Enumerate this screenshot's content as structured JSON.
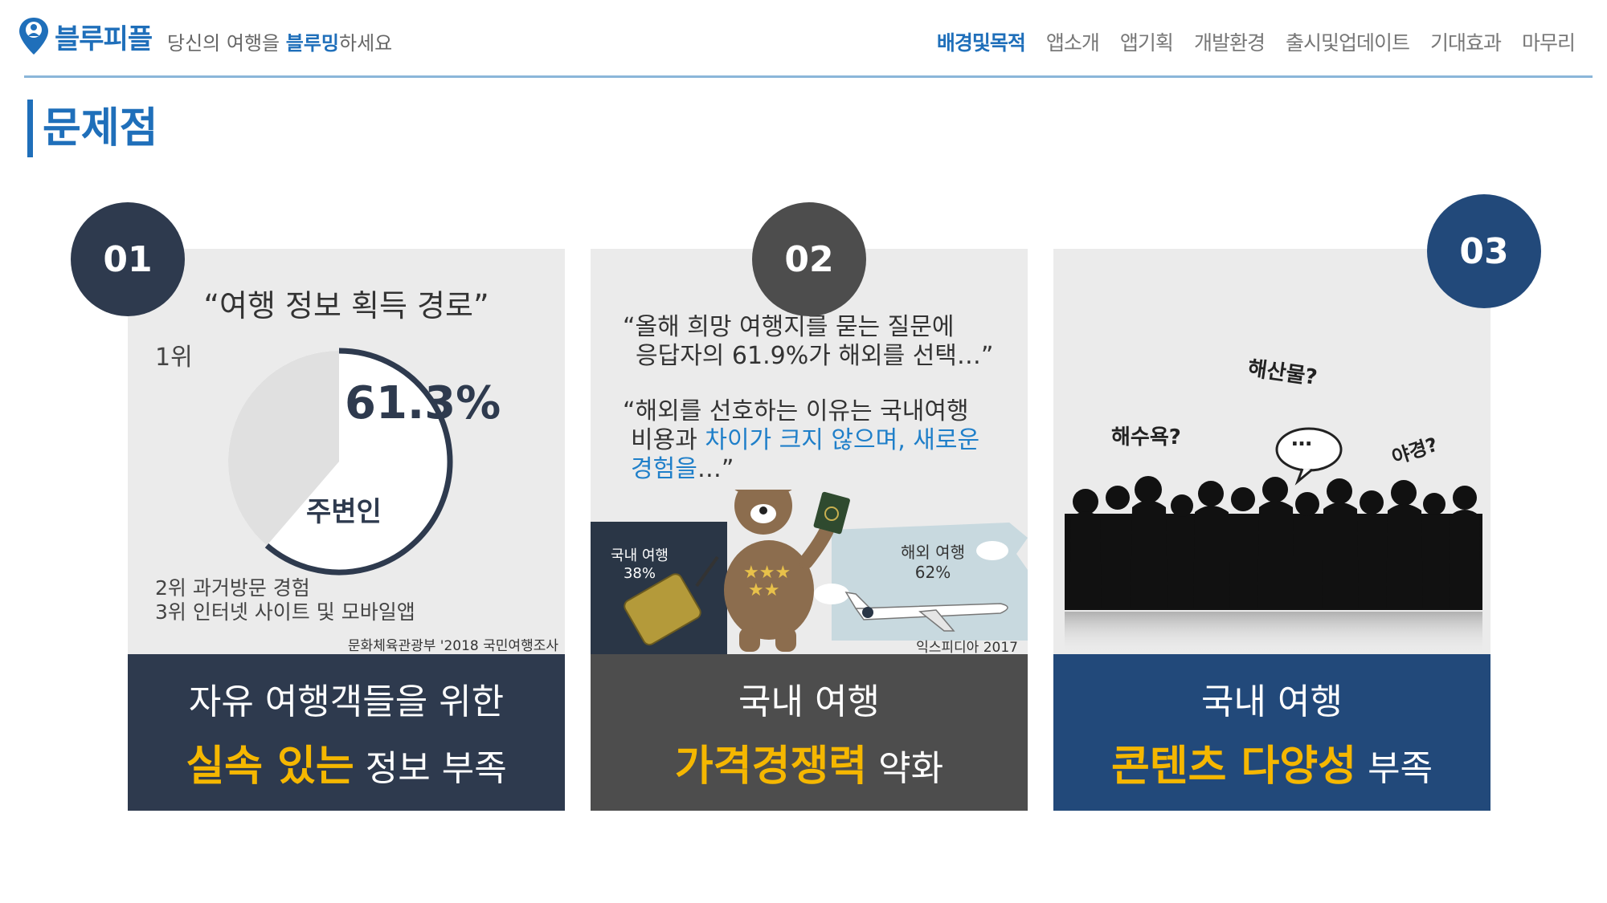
{
  "header": {
    "logo_text": "블루피플",
    "tagline_pre": "당신의 여행을 ",
    "tagline_hl": "블루밍",
    "tagline_post": "하세요",
    "nav": [
      {
        "label": "배경및목적",
        "active": true
      },
      {
        "label": "앱소개",
        "active": false
      },
      {
        "label": "앱기획",
        "active": false
      },
      {
        "label": "개발환경",
        "active": false
      },
      {
        "label": "출시및업데이트",
        "active": false
      },
      {
        "label": "기대효과",
        "active": false
      },
      {
        "label": "마무리",
        "active": false
      }
    ]
  },
  "section_title": "문제점",
  "cards": [
    {
      "number": "01",
      "title": "“여행 정보 획득 경로”",
      "rank1": "1위",
      "percent": "61.3%",
      "percent_value": 0.613,
      "label": "주변인",
      "rank2": "2위 과거방문 경험",
      "rank3": "3위 인터넷 사이트 및 모바일앱",
      "source": "문화체육관광부 '2018 국민여행조사",
      "foot_line1": "자유 여행객들을 위한",
      "foot_emph": "실속 있는",
      "foot_rest": " 정보 부족"
    },
    {
      "number": "02",
      "quote1_line1": "“올해 희망 여행지를 묻는 질문에",
      "quote1_line2": "응답자의 61.9%가 해외를 선택…”",
      "quote2_line1": "“해외를 선호하는 이유는 국내여행",
      "quote2_line2_pre": "비용과 ",
      "quote2_line2_blue": "차이가 크지 않으며, 새로운",
      "quote2_line3_blue": "경험을",
      "quote2_line3_post": "…”",
      "domestic_label": "국내 여행",
      "domestic_pct": "38%",
      "overseas_label": "해외 여행",
      "overseas_pct": "62%",
      "source": "익스피디아 2017",
      "foot_line1": "국내 여행",
      "foot_emph": "가격경쟁력",
      "foot_rest": " 약화"
    },
    {
      "number": "03",
      "bubble1": "해산물?",
      "bubble2": "해수욕?",
      "bubble3": "…",
      "bubble4": "야경?",
      "foot_line1": "국내 여행",
      "foot_emph": "콘텐츠 다양성",
      "foot_rest": " 부족"
    }
  ],
  "colors": {
    "brand": "#1f6fba",
    "card1_foot": "#2e3a4e",
    "card2_foot": "#4d4d4d",
    "card3_foot": "#22497a",
    "emphasis": "#f5b700"
  }
}
